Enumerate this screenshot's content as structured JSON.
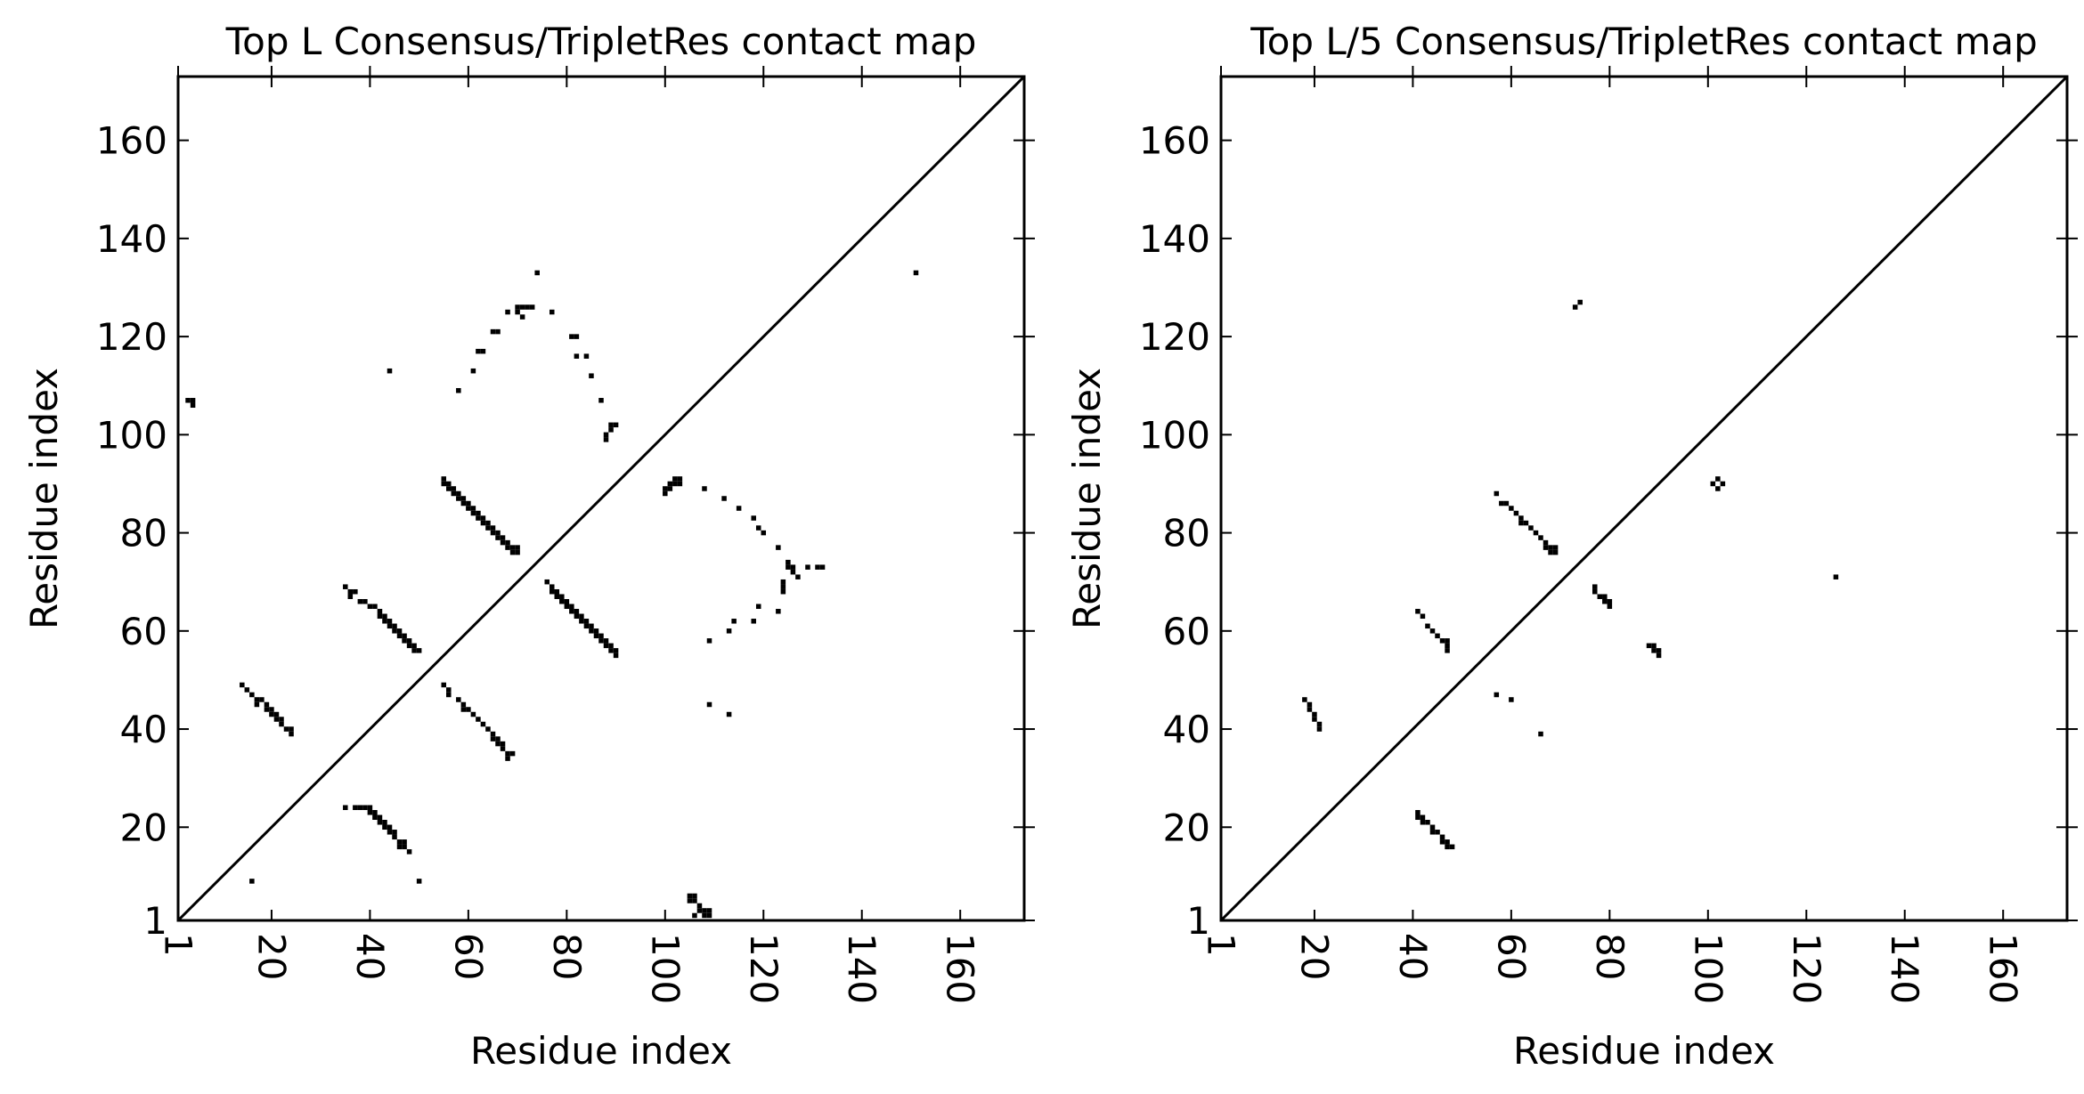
{
  "chart_data": [
    {
      "type": "scatter",
      "title": "Top L Consensus/TripletRes contact map",
      "xlabel": "Residue index",
      "ylabel": "Residue index",
      "xlim": [
        1,
        173
      ],
      "ylim": [
        1,
        173
      ],
      "xticks": [
        1,
        20,
        40,
        60,
        80,
        100,
        120,
        140,
        160
      ],
      "yticks": [
        1,
        20,
        40,
        60,
        80,
        100,
        120,
        140,
        160
      ],
      "diagonal": true,
      "grid": false,
      "points": [
        [
          3,
          107
        ],
        [
          4,
          107
        ],
        [
          4,
          106
        ],
        [
          16,
          9
        ],
        [
          50,
          9
        ],
        [
          14,
          49
        ],
        [
          15,
          48
        ],
        [
          16,
          47
        ],
        [
          17,
          46
        ],
        [
          17,
          45
        ],
        [
          18,
          46
        ],
        [
          19,
          45
        ],
        [
          19,
          44
        ],
        [
          20,
          44
        ],
        [
          20,
          43
        ],
        [
          21,
          43
        ],
        [
          21,
          42
        ],
        [
          22,
          42
        ],
        [
          22,
          41
        ],
        [
          23,
          40
        ],
        [
          24,
          39
        ],
        [
          24,
          40
        ],
        [
          35,
          69
        ],
        [
          36,
          68
        ],
        [
          36,
          67
        ],
        [
          37,
          68
        ],
        [
          38,
          66
        ],
        [
          39,
          66
        ],
        [
          40,
          65
        ],
        [
          41,
          65
        ],
        [
          42,
          64
        ],
        [
          42,
          63
        ],
        [
          43,
          63
        ],
        [
          43,
          62
        ],
        [
          44,
          62
        ],
        [
          44,
          61
        ],
        [
          45,
          61
        ],
        [
          45,
          60
        ],
        [
          46,
          60
        ],
        [
          46,
          59
        ],
        [
          47,
          59
        ],
        [
          47,
          58
        ],
        [
          48,
          58
        ],
        [
          48,
          57
        ],
        [
          49,
          57
        ],
        [
          49,
          56
        ],
        [
          50,
          56
        ],
        [
          35,
          24
        ],
        [
          37,
          24
        ],
        [
          38,
          24
        ],
        [
          39,
          24
        ],
        [
          40,
          23
        ],
        [
          40,
          24
        ],
        [
          41,
          23
        ],
        [
          41,
          22
        ],
        [
          42,
          22
        ],
        [
          42,
          21
        ],
        [
          43,
          21
        ],
        [
          43,
          20
        ],
        [
          44,
          20
        ],
        [
          44,
          19
        ],
        [
          45,
          19
        ],
        [
          45,
          18
        ],
        [
          46,
          17
        ],
        [
          46,
          16
        ],
        [
          47,
          17
        ],
        [
          47,
          16
        ],
        [
          48,
          15
        ],
        [
          44,
          113
        ],
        [
          58,
          109
        ],
        [
          61,
          113
        ],
        [
          62,
          117
        ],
        [
          63,
          117
        ],
        [
          65,
          121
        ],
        [
          66,
          121
        ],
        [
          68,
          125
        ],
        [
          70,
          126
        ],
        [
          70,
          125
        ],
        [
          71,
          126
        ],
        [
          71,
          124
        ],
        [
          72,
          126
        ],
        [
          73,
          126
        ],
        [
          74,
          133
        ],
        [
          77,
          125
        ],
        [
          81,
          120
        ],
        [
          82,
          120
        ],
        [
          82,
          116
        ],
        [
          84,
          116
        ],
        [
          85,
          112
        ],
        [
          87,
          107
        ],
        [
          88,
          100
        ],
        [
          88,
          99
        ],
        [
          89,
          102
        ],
        [
          90,
          102
        ],
        [
          89,
          101
        ],
        [
          55,
          91
        ],
        [
          55,
          90
        ],
        [
          56,
          90
        ],
        [
          56,
          89
        ],
        [
          57,
          89
        ],
        [
          57,
          88
        ],
        [
          58,
          88
        ],
        [
          58,
          87
        ],
        [
          59,
          87
        ],
        [
          59,
          86
        ],
        [
          60,
          86
        ],
        [
          60,
          85
        ],
        [
          61,
          85
        ],
        [
          61,
          84
        ],
        [
          62,
          84
        ],
        [
          62,
          83
        ],
        [
          63,
          83
        ],
        [
          63,
          82
        ],
        [
          64,
          82
        ],
        [
          64,
          81
        ],
        [
          65,
          81
        ],
        [
          65,
          80
        ],
        [
          66,
          80
        ],
        [
          66,
          79
        ],
        [
          67,
          79
        ],
        [
          67,
          78
        ],
        [
          68,
          78
        ],
        [
          68,
          77
        ],
        [
          69,
          77
        ],
        [
          69,
          76
        ],
        [
          70,
          76
        ],
        [
          70,
          77
        ],
        [
          55,
          49
        ],
        [
          56,
          48
        ],
        [
          56,
          47
        ],
        [
          58,
          46
        ],
        [
          59,
          45
        ],
        [
          59,
          44
        ],
        [
          60,
          44
        ],
        [
          61,
          43
        ],
        [
          62,
          42
        ],
        [
          63,
          41
        ],
        [
          64,
          40
        ],
        [
          65,
          39
        ],
        [
          65,
          38
        ],
        [
          66,
          38
        ],
        [
          66,
          37
        ],
        [
          67,
          37
        ],
        [
          67,
          36
        ],
        [
          68,
          35
        ],
        [
          68,
          34
        ],
        [
          69,
          35
        ],
        [
          76,
          70
        ],
        [
          77,
          69
        ],
        [
          77,
          68
        ],
        [
          78,
          68
        ],
        [
          78,
          67
        ],
        [
          79,
          67
        ],
        [
          79,
          66
        ],
        [
          80,
          66
        ],
        [
          80,
          65
        ],
        [
          81,
          65
        ],
        [
          81,
          64
        ],
        [
          82,
          64
        ],
        [
          82,
          63
        ],
        [
          83,
          63
        ],
        [
          83,
          62
        ],
        [
          84,
          62
        ],
        [
          84,
          61
        ],
        [
          85,
          61
        ],
        [
          85,
          60
        ],
        [
          86,
          60
        ],
        [
          86,
          59
        ],
        [
          87,
          59
        ],
        [
          87,
          58
        ],
        [
          88,
          58
        ],
        [
          88,
          57
        ],
        [
          89,
          57
        ],
        [
          89,
          56
        ],
        [
          90,
          56
        ],
        [
          90,
          55
        ],
        [
          100,
          89
        ],
        [
          100,
          88
        ],
        [
          101,
          90
        ],
        [
          101,
          89
        ],
        [
          102,
          91
        ],
        [
          102,
          90
        ],
        [
          103,
          91
        ],
        [
          103,
          90
        ],
        [
          108,
          89
        ],
        [
          112,
          87
        ],
        [
          115,
          85
        ],
        [
          118,
          83
        ],
        [
          119,
          81
        ],
        [
          120,
          80
        ],
        [
          123,
          77
        ],
        [
          125,
          74
        ],
        [
          125,
          73
        ],
        [
          126,
          73
        ],
        [
          126,
          72
        ],
        [
          127,
          71
        ],
        [
          129,
          73
        ],
        [
          131,
          73
        ],
        [
          132,
          73
        ],
        [
          124,
          68
        ],
        [
          124,
          69
        ],
        [
          124,
          70
        ],
        [
          123,
          64
        ],
        [
          119,
          65
        ],
        [
          118,
          62
        ],
        [
          114,
          62
        ],
        [
          113,
          60
        ],
        [
          109,
          58
        ],
        [
          109,
          45
        ],
        [
          113,
          43
        ],
        [
          105,
          6
        ],
        [
          105,
          5
        ],
        [
          106,
          6
        ],
        [
          106,
          5
        ],
        [
          107,
          4
        ],
        [
          107,
          3
        ],
        [
          108,
          3
        ],
        [
          108,
          2
        ],
        [
          109,
          3
        ],
        [
          109,
          2
        ],
        [
          106,
          2
        ],
        [
          151,
          133
        ]
      ]
    },
    {
      "type": "scatter",
      "title": "Top L/5 Consensus/TripletRes contact map",
      "xlabel": "Residue index",
      "ylabel": "Residue index",
      "xlim": [
        1,
        173
      ],
      "ylim": [
        1,
        173
      ],
      "xticks": [
        1,
        20,
        40,
        60,
        80,
        100,
        120,
        140,
        160
      ],
      "yticks": [
        1,
        20,
        40,
        60,
        80,
        100,
        120,
        140,
        160
      ],
      "diagonal": true,
      "grid": false,
      "points": [
        [
          73,
          126
        ],
        [
          74,
          127
        ],
        [
          57,
          88
        ],
        [
          58,
          86
        ],
        [
          59,
          86
        ],
        [
          60,
          85
        ],
        [
          61,
          84
        ],
        [
          62,
          83
        ],
        [
          62,
          82
        ],
        [
          63,
          82
        ],
        [
          64,
          81
        ],
        [
          65,
          80
        ],
        [
          66,
          79
        ],
        [
          67,
          78
        ],
        [
          67,
          77
        ],
        [
          68,
          77
        ],
        [
          68,
          76
        ],
        [
          69,
          76
        ],
        [
          69,
          77
        ],
        [
          41,
          64
        ],
        [
          42,
          63
        ],
        [
          43,
          61
        ],
        [
          44,
          60
        ],
        [
          45,
          59
        ],
        [
          46,
          58
        ],
        [
          47,
          58
        ],
        [
          47,
          57
        ],
        [
          47,
          56
        ],
        [
          18,
          46
        ],
        [
          19,
          45
        ],
        [
          19,
          44
        ],
        [
          20,
          43
        ],
        [
          20,
          42
        ],
        [
          21,
          41
        ],
        [
          21,
          40
        ],
        [
          57,
          47
        ],
        [
          60,
          46
        ],
        [
          66,
          39
        ],
        [
          41,
          23
        ],
        [
          41,
          22
        ],
        [
          42,
          22
        ],
        [
          42,
          21
        ],
        [
          43,
          21
        ],
        [
          44,
          20
        ],
        [
          44,
          19
        ],
        [
          45,
          19
        ],
        [
          46,
          18
        ],
        [
          46,
          17
        ],
        [
          47,
          17
        ],
        [
          47,
          16
        ],
        [
          48,
          16
        ],
        [
          77,
          69
        ],
        [
          77,
          68
        ],
        [
          78,
          67
        ],
        [
          79,
          67
        ],
        [
          79,
          66
        ],
        [
          80,
          66
        ],
        [
          80,
          65
        ],
        [
          88,
          57
        ],
        [
          89,
          57
        ],
        [
          89,
          56
        ],
        [
          90,
          56
        ],
        [
          90,
          55
        ],
        [
          101,
          90
        ],
        [
          102,
          91
        ],
        [
          102,
          89
        ],
        [
          103,
          90
        ],
        [
          126,
          71
        ]
      ]
    }
  ]
}
